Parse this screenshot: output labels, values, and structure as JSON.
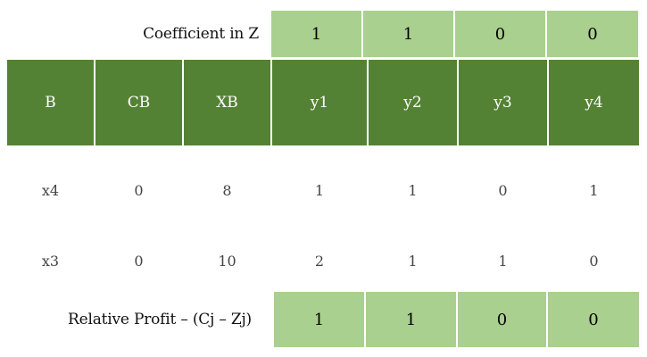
{
  "coefficient_row": {
    "label": "Coefficient in Z",
    "values": [
      "1",
      "1",
      "0",
      "0"
    ]
  },
  "header": {
    "columns": [
      "B",
      "CB",
      "XB",
      "y1",
      "y2",
      "y3",
      "y4"
    ]
  },
  "rows": [
    [
      "x4",
      "0",
      "8",
      "1",
      "1",
      "0",
      "1"
    ],
    [
      "x3",
      "0",
      "10",
      "2",
      "1",
      "1",
      "0"
    ]
  ],
  "relative_profit_row": {
    "label": "Relative Profit – (Cj – Zj)",
    "values": [
      "1",
      "1",
      "0",
      "0"
    ]
  },
  "colors": {
    "header_green": "#548235",
    "light_green": "#a9d08e"
  }
}
